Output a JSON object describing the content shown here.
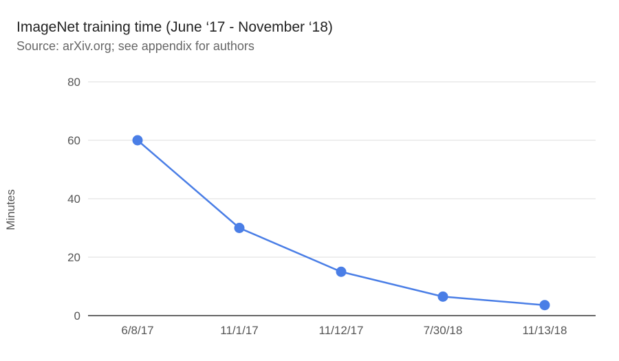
{
  "chart_data": {
    "type": "line",
    "title": "ImageNet training time (June ‘17 - November ‘18)",
    "subtitle": "Source: arXiv.org; see appendix for authors",
    "xlabel": "",
    "ylabel": "Minutes",
    "categories": [
      "6/8/17",
      "11/1/17",
      "11/12/17",
      "7/30/18",
      "11/13/18"
    ],
    "series": [
      {
        "values": [
          60,
          30,
          15,
          6.5,
          3.6
        ]
      }
    ],
    "ylim": [
      0,
      80
    ],
    "yticks": [
      0,
      20,
      40,
      60,
      80
    ],
    "grid": true,
    "legend": "none",
    "line_color": "#4a7ee6",
    "grid_color": "#dddddd",
    "axis_color": "#333333"
  }
}
